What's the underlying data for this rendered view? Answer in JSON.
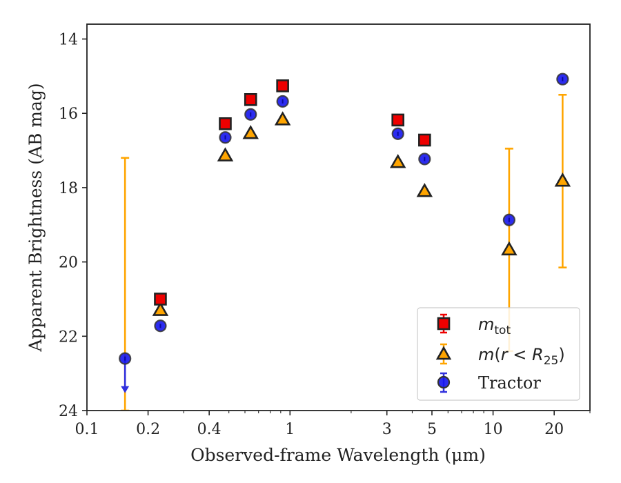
{
  "chart_data": {
    "type": "scatter",
    "xlabel": "Observed-frame Wavelength (μm)",
    "ylabel": "Apparent Brightness (AB mag)",
    "xscale": "log",
    "xlim": [
      0.1,
      30
    ],
    "ylim": [
      24.0,
      13.6
    ],
    "y_inverted": true,
    "x_ticks": [
      {
        "value": 0.1,
        "label": "0.1"
      },
      {
        "value": 0.2,
        "label": "0.2"
      },
      {
        "value": 0.4,
        "label": "0.4"
      },
      {
        "value": 1,
        "label": "1"
      },
      {
        "value": 3,
        "label": "3"
      },
      {
        "value": 5,
        "label": "5"
      },
      {
        "value": 10,
        "label": "10"
      },
      {
        "value": 20,
        "label": "20"
      }
    ],
    "x_minor_ticks": [
      0.3,
      0.5,
      0.6,
      0.7,
      0.8,
      0.9,
      2,
      4,
      6,
      7,
      8,
      9,
      30
    ],
    "y_ticks": [
      14,
      16,
      18,
      20,
      22,
      24
    ],
    "legend_position": "lower-right",
    "series": [
      {
        "name": "m_tot",
        "marker": "square",
        "color": "#ee0000",
        "error_color": "#ee0000",
        "points": [
          {
            "x": 0.23,
            "y": 21.0
          },
          {
            "x": 0.48,
            "y": 16.28
          },
          {
            "x": 0.64,
            "y": 15.63
          },
          {
            "x": 0.92,
            "y": 15.26
          },
          {
            "x": 3.4,
            "y": 16.18
          },
          {
            "x": 4.6,
            "y": 16.72
          }
        ]
      },
      {
        "name": "m(r < R25)",
        "marker": "triangle",
        "color": "#ffa500",
        "error_color": "#ffa500",
        "points": [
          {
            "x": 0.23,
            "y": 21.28
          },
          {
            "x": 0.48,
            "y": 17.12
          },
          {
            "x": 0.64,
            "y": 16.52
          },
          {
            "x": 0.92,
            "y": 16.15
          },
          {
            "x": 3.4,
            "y": 17.3
          },
          {
            "x": 4.6,
            "y": 18.08
          },
          {
            "x": 12.0,
            "y": 19.65,
            "y_err_upper": 16.95,
            "y_err_lower": 22.4
          },
          {
            "x": 22.0,
            "y": 17.8,
            "y_err_upper": 15.5,
            "y_err_lower": 20.15
          }
        ],
        "extra_bars": [
          {
            "x": 0.154,
            "y_err_upper": 17.2,
            "y_err_lower": 24.0
          }
        ]
      },
      {
        "name": "Tractor",
        "marker": "circle",
        "color": "#1515ee",
        "error_color": "#3030dd",
        "points": [
          {
            "x": 0.154,
            "y": 22.6,
            "upper_limit": true
          },
          {
            "x": 0.23,
            "y": 21.72
          },
          {
            "x": 0.48,
            "y": 16.65
          },
          {
            "x": 0.64,
            "y": 16.03
          },
          {
            "x": 0.92,
            "y": 15.68
          },
          {
            "x": 3.4,
            "y": 16.55
          },
          {
            "x": 4.6,
            "y": 17.23
          },
          {
            "x": 12.0,
            "y": 18.87
          },
          {
            "x": 22.0,
            "y": 15.08
          }
        ]
      }
    ]
  }
}
